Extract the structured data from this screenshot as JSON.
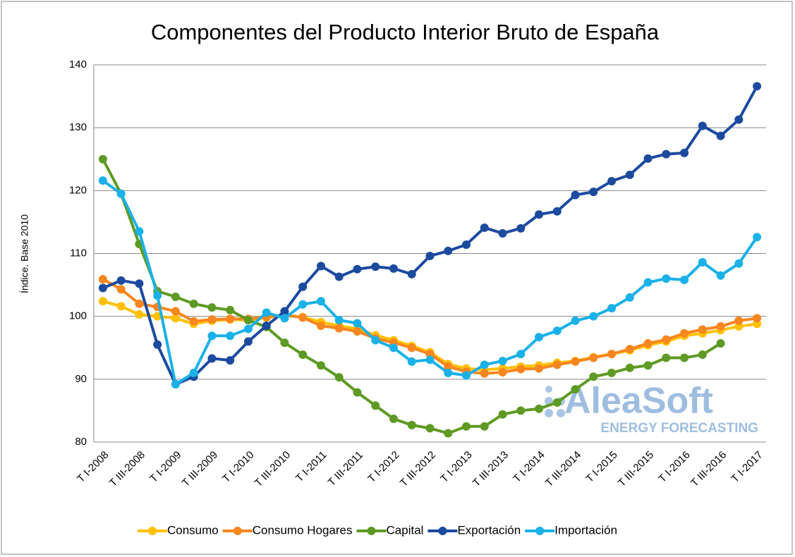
{
  "chart_data": {
    "type": "line",
    "title": "Componentes del Producto Interior Bruto de España",
    "y_label": "Índice. Base 2010",
    "watermark": {
      "name": "AleaSoft",
      "tagline": "ENERGY FORECASTING"
    },
    "categories": [
      "T I-2008",
      null,
      "T III-2008",
      null,
      "T I-2009",
      null,
      "T III-2009",
      null,
      "T I-2010",
      null,
      "T III-2010",
      null,
      "T I-2011",
      null,
      "T III-2011",
      null,
      "T I-2012",
      null,
      "T III-2012",
      null,
      "T I-2013",
      null,
      "T III-2013",
      null,
      "T I-2014",
      null,
      "T III-2014",
      null,
      "T I-2015",
      null,
      "T III-2015",
      null,
      "T I-2016",
      null,
      "T III-2016",
      null,
      "T I-2017"
    ],
    "ylim": [
      80,
      140
    ],
    "yticks": [
      80,
      90,
      100,
      110,
      120,
      130,
      140
    ],
    "grid": true,
    "legend": "bottom",
    "series": [
      {
        "name": "Consumo",
        "color": "#ffc000",
        "values": [
          102.4,
          101.6,
          100.3,
          100.0,
          99.7,
          98.8,
          99.3,
          99.5,
          99.4,
          99.8,
          100.2,
          99.9,
          99.1,
          98.5,
          98.0,
          97.0,
          96.2,
          95.3,
          94.3,
          92.4,
          91.7,
          91.5,
          91.7,
          92.0,
          92.2,
          92.6,
          92.9,
          93.5,
          94.0,
          94.6,
          95.4,
          96.0,
          96.9,
          97.3,
          97.8,
          98.4,
          98.8
        ]
      },
      {
        "name": "Consumo Hogares",
        "color": "#f7861e",
        "values": [
          105.9,
          104.3,
          102.0,
          101.5,
          100.8,
          99.2,
          99.5,
          99.6,
          99.6,
          99.9,
          100.2,
          99.8,
          98.5,
          98.1,
          97.6,
          96.5,
          95.8,
          95.0,
          94.0,
          92.0,
          91.2,
          90.9,
          91.1,
          91.6,
          91.7,
          92.3,
          92.8,
          93.4,
          94.0,
          94.8,
          95.7,
          96.3,
          97.3,
          97.9,
          98.4,
          99.3,
          99.7
        ]
      },
      {
        "name": "Capital",
        "color": "#5e9a23",
        "values": [
          125.0,
          119.5,
          111.5,
          104.0,
          103.1,
          102.0,
          101.4,
          101.0,
          99.4,
          98.3,
          95.8,
          93.9,
          92.2,
          90.3,
          87.9,
          85.8,
          83.7,
          82.7,
          82.2,
          81.4,
          82.5,
          82.5,
          84.4,
          85.0,
          85.3,
          86.3,
          88.4,
          90.4,
          91.0,
          91.8,
          92.2,
          93.4,
          93.4,
          93.9,
          95.7,
          null,
          null
        ]
      },
      {
        "name": "Exportación",
        "color": "#1c4a9f",
        "values": [
          104.5,
          105.7,
          105.2,
          95.5,
          89.2,
          90.4,
          93.3,
          93.0,
          96.0,
          98.5,
          100.8,
          104.7,
          108.0,
          106.3,
          107.5,
          107.9,
          107.6,
          106.7,
          109.6,
          110.4,
          111.4,
          114.1,
          113.2,
          114.0,
          116.2,
          116.7,
          119.3,
          119.8,
          121.5,
          122.5,
          125.1,
          125.8,
          126.0,
          130.3,
          128.7,
          131.3,
          136.6
        ]
      },
      {
        "name": "Importación",
        "color": "#1ab1e8",
        "values": [
          121.6,
          119.5,
          113.5,
          103.3,
          89.2,
          91.0,
          96.9,
          96.9,
          98.0,
          100.6,
          99.7,
          101.9,
          102.4,
          99.4,
          98.9,
          96.2,
          95.0,
          92.8,
          93.1,
          91.0,
          90.6,
          92.3,
          92.9,
          94.0,
          96.7,
          97.7,
          99.3,
          100.0,
          101.3,
          103.0,
          105.4,
          106.0,
          105.8,
          108.6,
          106.5,
          108.4,
          112.6
        ]
      }
    ]
  }
}
